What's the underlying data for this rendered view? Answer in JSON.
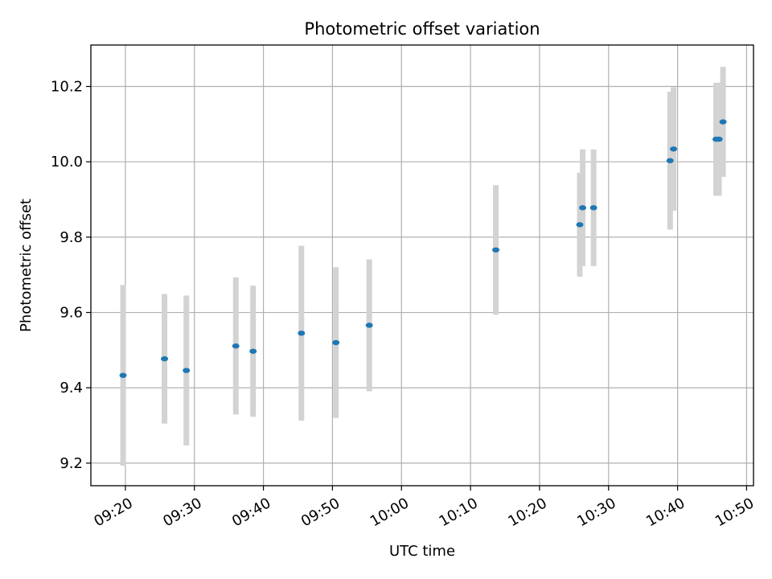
{
  "chart_data": {
    "type": "scatter",
    "title": "Photometric offset variation",
    "xlabel": "UTC time",
    "ylabel": "Photometric offset",
    "xlim": [
      "09:15",
      "10:51"
    ],
    "ylim": [
      9.14,
      10.31
    ],
    "x_ticks": [
      "09:20",
      "09:30",
      "09:40",
      "09:50",
      "10:00",
      "10:10",
      "10:20",
      "10:30",
      "10:40",
      "10:50"
    ],
    "y_ticks": [
      "9.2",
      "9.4",
      "9.6",
      "9.8",
      "10.0",
      "10.2"
    ],
    "grid": true,
    "colors": {
      "point": "#1f77b4",
      "errorbar": "#d3d3d3",
      "grid": "#b0b0b0"
    },
    "points": [
      {
        "x": "09:19:40",
        "y": 9.433,
        "err": 0.24
      },
      {
        "x": "09:25:40",
        "y": 9.477,
        "err": 0.172
      },
      {
        "x": "09:28:50",
        "y": 9.446,
        "err": 0.199
      },
      {
        "x": "09:36:00",
        "y": 9.511,
        "err": 0.182
      },
      {
        "x": "09:38:30",
        "y": 9.497,
        "err": 0.174
      },
      {
        "x": "09:45:30",
        "y": 9.545,
        "err": 0.232
      },
      {
        "x": "09:50:30",
        "y": 9.52,
        "err": 0.2
      },
      {
        "x": "09:55:20",
        "y": 9.566,
        "err": 0.175
      },
      {
        "x": "10:13:40",
        "y": 9.766,
        "err": 0.172
      },
      {
        "x": "10:25:50",
        "y": 9.833,
        "err": 0.138
      },
      {
        "x": "10:26:15",
        "y": 9.878,
        "err": 0.155
      },
      {
        "x": "10:27:50",
        "y": 9.878,
        "err": 0.155
      },
      {
        "x": "10:38:55",
        "y": 10.003,
        "err": 0.183
      },
      {
        "x": "10:39:25",
        "y": 10.034,
        "err": 0.164
      },
      {
        "x": "10:45:35",
        "y": 10.06,
        "err": 0.15
      },
      {
        "x": "10:46:00",
        "y": 10.06,
        "err": 0.15
      },
      {
        "x": "10:46:35",
        "y": 10.106,
        "err": 0.146
      }
    ]
  }
}
